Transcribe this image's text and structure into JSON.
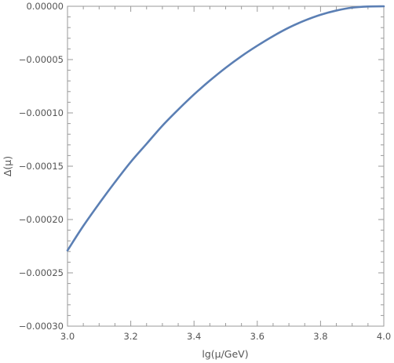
{
  "chart_data": {
    "type": "line",
    "title": "",
    "xlabel": "lg(μ/GeV)",
    "ylabel": "Δ(μ)",
    "xlim": [
      3.0,
      4.0
    ],
    "ylim": [
      -0.0003,
      0.0
    ],
    "grid": false,
    "x_ticks": [
      {
        "value": 3.0,
        "label": "3.0"
      },
      {
        "value": 3.2,
        "label": "3.2"
      },
      {
        "value": 3.4,
        "label": "3.4"
      },
      {
        "value": 3.6,
        "label": "3.6"
      },
      {
        "value": 3.8,
        "label": "3.8"
      },
      {
        "value": 4.0,
        "label": "4.0"
      }
    ],
    "y_ticks": [
      {
        "value": 0.0,
        "label": "0.00000"
      },
      {
        "value": -5e-05,
        "label": "−0.00005"
      },
      {
        "value": -0.0001,
        "label": "−0.00010"
      },
      {
        "value": -0.00015,
        "label": "−0.00015"
      },
      {
        "value": -0.0002,
        "label": "−0.00020"
      },
      {
        "value": -0.00025,
        "label": "−0.00025"
      },
      {
        "value": -0.0003,
        "label": "−0.00030"
      }
    ],
    "series": [
      {
        "color": "#5b7fb4",
        "x": [
          3.0,
          3.05,
          3.1,
          3.15,
          3.2,
          3.25,
          3.3,
          3.35,
          3.4,
          3.45,
          3.5,
          3.55,
          3.6,
          3.65,
          3.7,
          3.75,
          3.8,
          3.85,
          3.9,
          3.95,
          4.0
        ],
        "y": [
          -0.000229,
          -0.000206,
          -0.000185,
          -0.000165,
          -0.000146,
          -0.000129,
          -0.000112,
          -9.69e-05,
          -8.27e-05,
          -6.97e-05,
          -5.77e-05,
          -4.68e-05,
          -3.7e-05,
          -2.8e-05,
          -2e-05,
          -1.34e-05,
          -8e-06,
          -4e-06,
          -1.3e-06,
          -2e-07,
          0.0
        ]
      }
    ]
  }
}
